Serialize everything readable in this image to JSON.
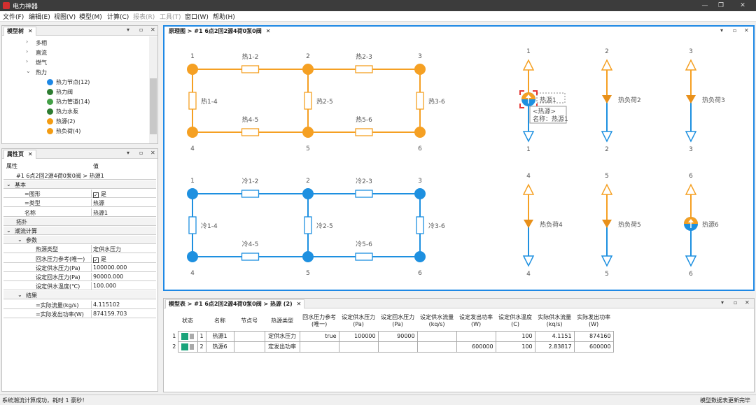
{
  "window": {
    "title": "电力神器"
  },
  "menu": [
    "文件(F)",
    "编辑(E)",
    "视图(V)",
    "模型(M)",
    "计算(C)",
    "报表(R)",
    "工具(T)",
    "窗口(W)",
    "帮助(H)"
  ],
  "menu_disabled": [
    false,
    false,
    false,
    false,
    false,
    true,
    true,
    false,
    false
  ],
  "model_tree": {
    "tab": "模型树",
    "items": [
      {
        "label": "多相",
        "indent": 1,
        "arrow": "›"
      },
      {
        "label": "直流",
        "indent": 1,
        "arrow": "›"
      },
      {
        "label": "燃气",
        "indent": 1,
        "arrow": "›"
      },
      {
        "label": "热力",
        "indent": 1,
        "arrow": "⌄"
      },
      {
        "label": "热力节点(12)",
        "indent": 2,
        "icon": "heat-node-icon",
        "color": "#1e88e5"
      },
      {
        "label": "热力阀",
        "indent": 2,
        "icon": "heat-valve-icon",
        "color": "#2e7d32"
      },
      {
        "label": "热力管道(14)",
        "indent": 2,
        "icon": "heat-pipe-icon",
        "color": "#43a047"
      },
      {
        "label": "热力水泵",
        "indent": 2,
        "icon": "heat-pump-icon",
        "color": "#2e7d32"
      },
      {
        "label": "热源(2)",
        "indent": 2,
        "icon": "heat-source-icon",
        "color": "#f39c12"
      },
      {
        "label": "热负荷(4)",
        "indent": 2,
        "icon": "heat-load-icon",
        "color": "#f39c12"
      }
    ]
  },
  "properties": {
    "tab": "属性页",
    "col_name": "属性",
    "col_value": "值",
    "path": "#1 6点2回2源4荷0泵0阀 > 热源1",
    "rows": [
      {
        "name": "基本",
        "level": 0,
        "group": true
      },
      {
        "name": "=图形",
        "level": 2,
        "value": "是",
        "check": true
      },
      {
        "name": "=类型",
        "level": 2,
        "value": "热源"
      },
      {
        "name": "名称",
        "level": 2,
        "value": "热源1"
      },
      {
        "name": "拓扑",
        "level": 1,
        "group": true
      },
      {
        "name": "潮流计算",
        "level": 0,
        "group": true
      },
      {
        "name": "参数",
        "level": 1,
        "group": true
      },
      {
        "name": "热源类型",
        "level": 3,
        "value": "定供水压力"
      },
      {
        "name": "回水压力参考(唯一)",
        "level": 3,
        "value": "是",
        "check": true
      },
      {
        "name": "设定供水压力(Pa)",
        "level": 3,
        "value": "100000.000"
      },
      {
        "name": "设定回水压力(Pa)",
        "level": 3,
        "value": "90000.000"
      },
      {
        "name": "设定供水温度(℃)",
        "level": 3,
        "value": "100.000"
      },
      {
        "name": "结果",
        "level": 1,
        "group": true
      },
      {
        "name": "=实际流量(kg/s)",
        "level": 3,
        "value": "4.115102"
      },
      {
        "name": "=实际发出功率(W)",
        "level": 3,
        "value": "874159.703"
      }
    ]
  },
  "diagram": {
    "tab": "原理图",
    "breadcrumb": "#1 6点2回2源4荷0泵0阀",
    "colors": {
      "hot": "#f5a023",
      "cold": "#1e90e0",
      "valve": "#e8901a"
    },
    "hot_nodes": [
      "1",
      "2",
      "3",
      "4",
      "5",
      "6"
    ],
    "hot_pipes": [
      "热1-2",
      "热2-3",
      "热1-4",
      "热2-5",
      "热3-6",
      "热4-5",
      "热5-6"
    ],
    "cold_nodes": [
      "1",
      "2",
      "3",
      "4",
      "5",
      "6"
    ],
    "cold_pipes": [
      "冷1-2",
      "冷2-3",
      "冷1-4",
      "冷2-5",
      "冷3-6",
      "冷4-5",
      "冷5-6"
    ],
    "units": [
      {
        "top": "1",
        "bottom": "1",
        "label": "热源1",
        "kind": "source",
        "selected": true
      },
      {
        "top": "2",
        "bottom": "2",
        "label": "热负荷2",
        "kind": "load"
      },
      {
        "top": "3",
        "bottom": "3",
        "label": "热负荷3",
        "kind": "load"
      },
      {
        "top": "4",
        "bottom": "4",
        "label": "热负荷4",
        "kind": "load"
      },
      {
        "top": "5",
        "bottom": "5",
        "label": "热负荷5",
        "kind": "load"
      },
      {
        "top": "6",
        "bottom": "6",
        "label": "热源6",
        "kind": "source"
      }
    ],
    "tooltip": {
      "line1": "<热源>",
      "line2": "名称：热源1"
    }
  },
  "model_table": {
    "tab": "模型表",
    "breadcrumb": "#1 6点2回2源4荷0泵0阀 > 热源 (2)",
    "headers": [
      "状态",
      "",
      "名称",
      "节点号",
      "热源类型",
      "回水压力参考\n(唯一)",
      "设定供水压力\n(Pa)",
      "设定回水压力\n(Pa)",
      "设定供水流量\n(kq/s)",
      "设定发出功率\n(W)",
      "设定供水温度\n(C)",
      "实际供水流量\n(kq/s)",
      "实际发出功率\n(W)"
    ],
    "rows": [
      {
        "row": "1",
        "idx": "1",
        "name": "热源1",
        "node": "",
        "type": "定供水压力",
        "ref": "true",
        "sp": "100000",
        "rp": "90000",
        "flow": "",
        "pow": "",
        "temp": "100",
        "aflow": "4.1151",
        "apow": "874160"
      },
      {
        "row": "2",
        "idx": "2",
        "name": "热源6",
        "node": "",
        "type": "定发出功率",
        "ref": "",
        "sp": "",
        "rp": "",
        "flow": "",
        "pow": "600000",
        "temp": "100",
        "aflow": "2.83817",
        "apow": "600000"
      }
    ]
  },
  "status": {
    "left": "系统潮流计算成功，耗时 1 豪秒！",
    "right": "模型数据表更新完毕"
  }
}
